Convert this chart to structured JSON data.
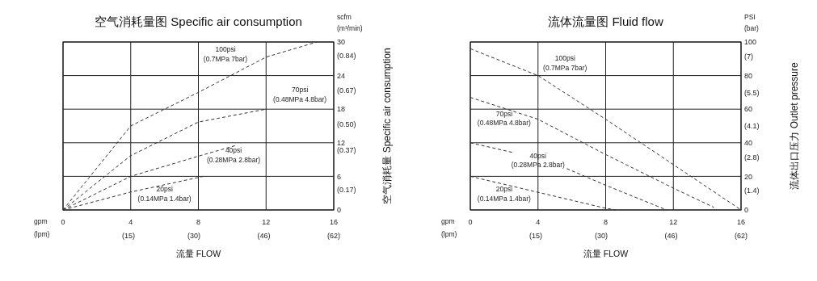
{
  "chart_data": [
    {
      "type": "line",
      "title": "空气消耗量图 Specific air consumption",
      "xlabel": "流量 FLOW",
      "y2label": "空气消耗量  Specific air consumption",
      "line_style": "dashed",
      "marker": "none",
      "grid": true,
      "xlim": [
        0,
        16
      ],
      "xticks": [
        0,
        4,
        8,
        12,
        16
      ],
      "x2lim": [
        0,
        62
      ],
      "x2ticks": [
        {
          "value": 15,
          "label": "(15)"
        },
        {
          "value": 30,
          "label": "(30)"
        },
        {
          "value": 46,
          "label": "(46)"
        },
        {
          "value": 62,
          "label": "(62)"
        }
      ],
      "ylim": [
        0,
        30
      ],
      "yticks": [
        0,
        6,
        12,
        18,
        24,
        30
      ],
      "y2lim": [
        0.07,
        0.91
      ],
      "y2ticks": [
        {
          "value": 0.17,
          "label": "(0.17)"
        },
        {
          "value": 0.37,
          "label": "(0.37)"
        },
        {
          "value": 0.5,
          "label": "(0.50)"
        },
        {
          "value": 0.67,
          "label": "(0.67)"
        },
        {
          "value": 0.84,
          "label": "(0.84)"
        }
      ],
      "series": [
        {
          "color": "#333333",
          "x": [
            0,
            4,
            8,
            12,
            15
          ],
          "values": [
            0,
            15,
            21,
            27.3,
            30
          ]
        },
        {
          "color": "#333333",
          "x": [
            0,
            4,
            8,
            12
          ],
          "values": [
            0,
            9.7,
            15.7,
            18
          ]
        },
        {
          "color": "#333333",
          "x": [
            0,
            4,
            8,
            10.2
          ],
          "values": [
            0,
            6,
            9.6,
            11.5
          ]
        },
        {
          "color": "#333333",
          "x": [
            0,
            4,
            8.3
          ],
          "values": [
            0,
            3.2,
            6
          ]
        }
      ],
      "annotations": [
        "scfm\n(m³/min)",
        "gpm\n(lpm)",
        "100psi\n(0.7MPa 7bar)",
        "70psi\n(0.48MPa 4.8bar)",
        "40psi\n(0.28MPa 2.8bar)",
        "20psi\n(0.14MPa 1.4bar)"
      ]
    },
    {
      "type": "line",
      "title": "流体流量图 Fluid flow",
      "xlabel": "流量 FLOW",
      "y2label": "流体出口压力 Outlet pressure",
      "line_style": "dashed",
      "marker": "none",
      "grid": true,
      "xlim": [
        0,
        16
      ],
      "xticks": [
        0,
        4,
        8,
        12,
        16
      ],
      "x2lim": [
        0,
        62
      ],
      "x2ticks": [
        {
          "value": 15,
          "label": "(15)"
        },
        {
          "value": 30,
          "label": "(30)"
        },
        {
          "value": 46,
          "label": "(46)"
        },
        {
          "value": 62,
          "label": "(62)"
        }
      ],
      "ylim": [
        0,
        100
      ],
      "yticks": [
        0,
        20,
        40,
        60,
        80,
        100
      ],
      "y2lim": [
        0.6,
        7.6
      ],
      "y2ticks": [
        {
          "value": 1.4,
          "label": "(1.4)"
        },
        {
          "value": 2.8,
          "label": "(2.8)"
        },
        {
          "value": 4.1,
          "label": "(4.1)"
        },
        {
          "value": 5.5,
          "label": "(5.5)"
        },
        {
          "value": 7,
          "label": "(7)"
        }
      ],
      "series": [
        {
          "color": "#333333",
          "x": [
            0,
            4,
            8,
            12,
            16
          ],
          "values": [
            96,
            80,
            54,
            27,
            0
          ]
        },
        {
          "color": "#333333",
          "x": [
            0,
            4,
            8,
            12,
            14.4
          ],
          "values": [
            67,
            54,
            33,
            13,
            1.5
          ]
        },
        {
          "color": "#333333",
          "x": [
            0,
            2.6,
            4,
            5.7,
            8,
            11.6
          ],
          "values": [
            40,
            34,
            null,
            24.6,
            14.7,
            0
          ]
        },
        {
          "color": "#333333",
          "x": [
            0,
            4,
            8,
            8.6
          ],
          "values": [
            20,
            10.5,
            1,
            0
          ]
        }
      ],
      "annotations": [
        "PSI\n(bar)",
        "gpm\n(lpm)",
        "100psi\n(0.7MPa 7bar)",
        "70psi\n(0.48MPa 4.8bar)",
        "40psi\n(0.28MPa 2.8bar)",
        "20psi\n(0.14MPa 1.4bar)"
      ]
    }
  ]
}
